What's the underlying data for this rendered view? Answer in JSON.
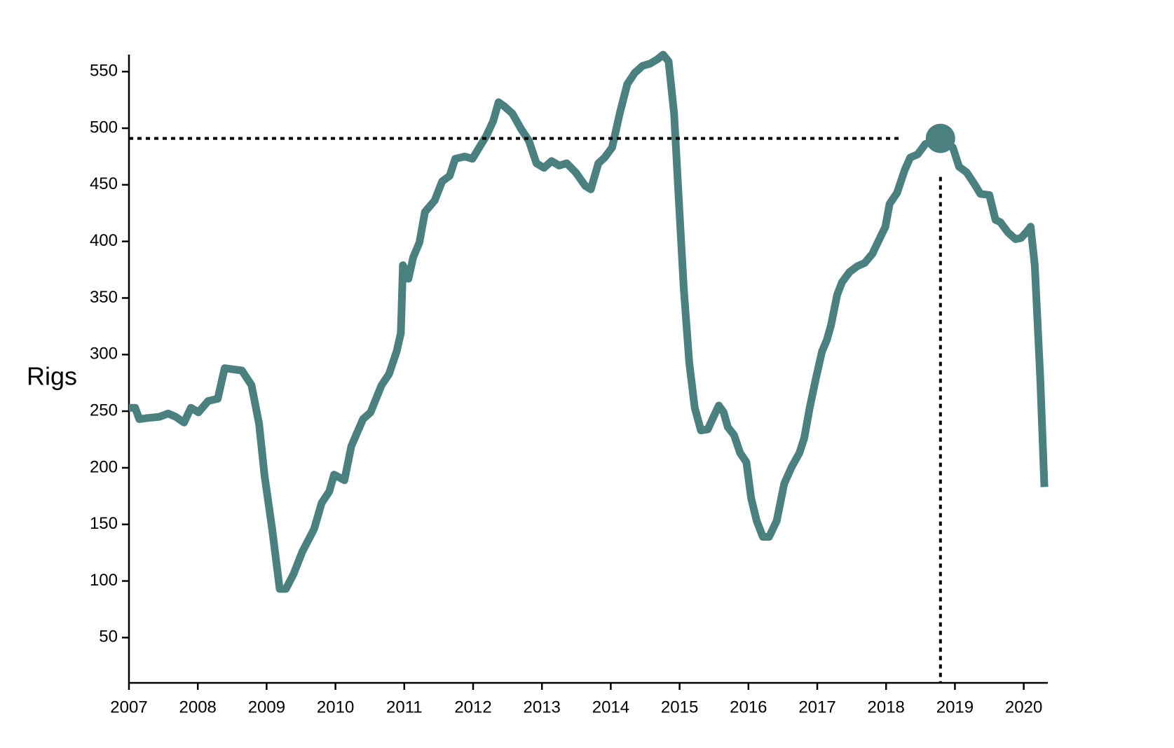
{
  "chart_data": {
    "type": "line",
    "y_label": "Rigs",
    "color": "#4a8080",
    "xlim": [
      2007,
      2020.35
    ],
    "xticks": [
      2007,
      2008,
      2009,
      2010,
      2011,
      2012,
      2013,
      2014,
      2015,
      2016,
      2017,
      2018,
      2019,
      2020
    ],
    "ylim": [
      10,
      565
    ],
    "yticks": [
      50,
      100,
      150,
      200,
      250,
      300,
      350,
      400,
      450,
      500,
      550
    ],
    "x": [
      2007.0,
      2007.09,
      2007.15,
      2007.27,
      2007.44,
      2007.57,
      2007.68,
      2007.8,
      2007.9,
      2008.01,
      2008.15,
      2008.29,
      2008.39,
      2008.51,
      2008.64,
      2008.78,
      2008.89,
      2008.97,
      2009.08,
      2009.19,
      2009.28,
      2009.39,
      2009.52,
      2009.69,
      2009.8,
      2009.91,
      2009.98,
      2010.13,
      2010.23,
      2010.4,
      2010.51,
      2010.67,
      2010.78,
      2010.89,
      2010.95,
      2010.98,
      2011.06,
      2011.13,
      2011.22,
      2011.3,
      2011.44,
      2011.55,
      2011.66,
      2011.74,
      2011.88,
      2011.99,
      2012.1,
      2012.19,
      2012.29,
      2012.37,
      2012.46,
      2012.57,
      2012.7,
      2012.81,
      2012.92,
      2013.03,
      2013.14,
      2013.25,
      2013.36,
      2013.49,
      2013.63,
      2013.71,
      2013.82,
      2013.91,
      2014.02,
      2014.13,
      2014.24,
      2014.35,
      2014.46,
      2014.57,
      2014.68,
      2014.76,
      2014.84,
      2014.92,
      2014.98,
      2015.06,
      2015.14,
      2015.22,
      2015.31,
      2015.41,
      2015.5,
      2015.57,
      2015.64,
      2015.7,
      2015.79,
      2015.88,
      2015.97,
      2016.04,
      2016.12,
      2016.21,
      2016.3,
      2016.41,
      2016.52,
      2016.63,
      2016.74,
      2016.81,
      2016.89,
      2016.98,
      2017.07,
      2017.14,
      2017.2,
      2017.29,
      2017.36,
      2017.47,
      2017.58,
      2017.69,
      2017.8,
      2017.91,
      2017.99,
      2018.05,
      2018.16,
      2018.27,
      2018.35,
      2018.46,
      2018.57,
      2018.79,
      2018.97,
      2019.06,
      2019.17,
      2019.28,
      2019.37,
      2019.5,
      2019.59,
      2019.66,
      2019.77,
      2019.88,
      2019.96,
      2020.05,
      2020.1,
      2020.16,
      2020.24,
      2020.3
    ],
    "values": [
      253,
      253,
      243,
      244,
      245,
      248,
      245,
      240,
      253,
      249,
      259,
      261,
      288,
      287,
      286,
      273,
      239,
      193,
      146,
      93,
      93,
      106,
      126,
      146,
      169,
      179,
      194,
      189,
      219,
      243,
      249,
      273,
      283,
      303,
      319,
      379,
      367,
      386,
      399,
      426,
      436,
      453,
      458,
      473,
      475,
      473,
      484,
      493,
      506,
      523,
      519,
      513,
      499,
      489,
      469,
      465,
      471,
      467,
      469,
      461,
      449,
      446,
      469,
      474,
      483,
      513,
      539,
      549,
      555,
      557,
      561,
      565,
      559,
      513,
      446,
      359,
      293,
      253,
      233,
      234,
      246,
      255,
      249,
      236,
      229,
      213,
      205,
      173,
      153,
      139,
      139,
      153,
      186,
      201,
      213,
      226,
      253,
      279,
      303,
      313,
      326,
      353,
      364,
      373,
      378,
      381,
      389,
      403,
      413,
      433,
      443,
      463,
      474,
      477,
      486,
      491,
      483,
      466,
      461,
      451,
      442,
      441,
      419,
      417,
      408,
      402,
      403,
      409,
      413,
      379,
      279,
      183
    ],
    "highlight": {
      "x": 2018.79,
      "y": 491
    }
  }
}
